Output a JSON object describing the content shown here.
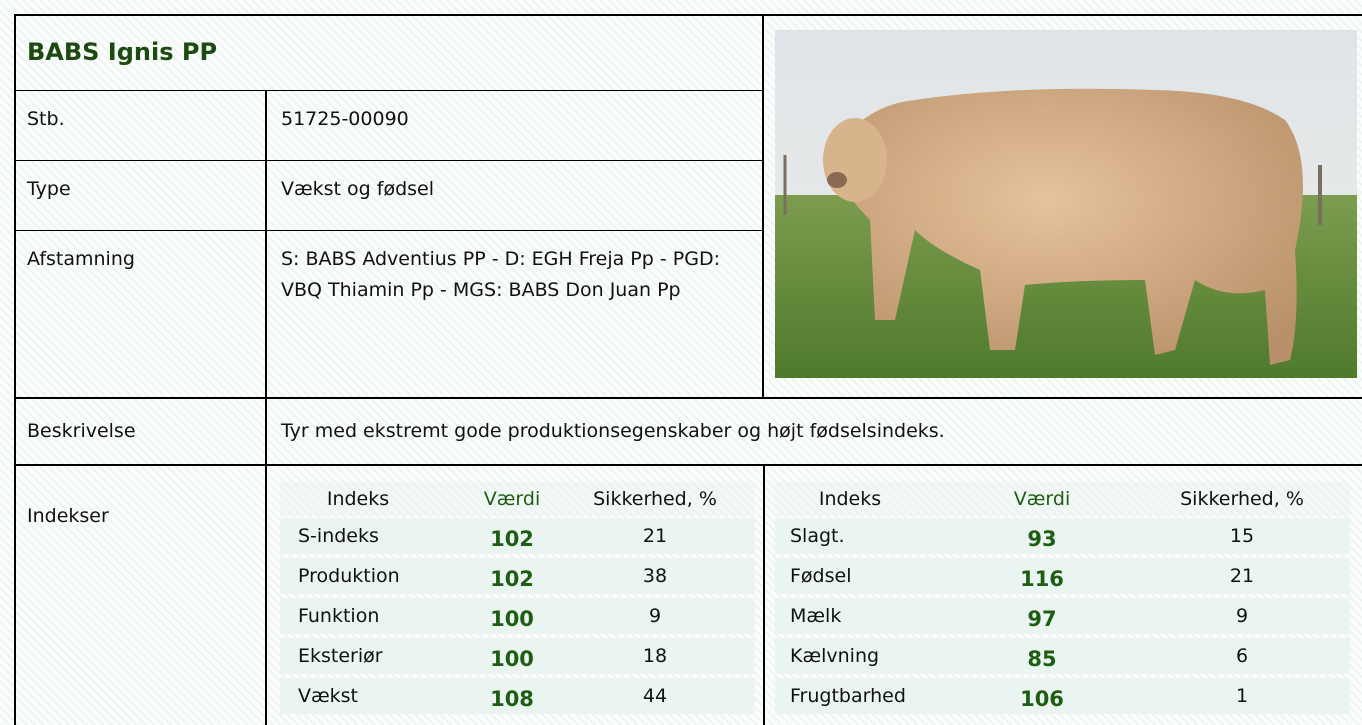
{
  "header": {
    "title": "BABS Ignis PP"
  },
  "fields": [
    {
      "label": "Stb.",
      "value": "51725-00090"
    },
    {
      "label": "Type",
      "value": "Vækst og fødsel"
    },
    {
      "label": "Afstamning",
      "value": "S: BABS Adventius PP - D: EGH Freja Pp - PGD: VBQ Thiamin Pp - MGS: BABS Don Juan Pp"
    }
  ],
  "description": {
    "label": "Beskrivelse",
    "value": "Tyr med ekstremt gode produktionsegenskaber og højt fødselsindeks."
  },
  "indices": {
    "label": "Indekser",
    "tables": [
      {
        "columns": [
          "Indeks",
          "Værdi",
          "Sikkerhed, %"
        ],
        "rows": [
          [
            "S-indeks",
            102,
            21
          ],
          [
            "Produktion",
            102,
            38
          ],
          [
            "Funktion",
            100,
            9
          ],
          [
            "Eksteriør",
            100,
            18
          ],
          [
            "Vækst",
            108,
            44
          ]
        ]
      },
      {
        "columns": [
          "Indeks",
          "Værdi",
          "Sikkerhed, %"
        ],
        "rows": [
          [
            "Slagt.",
            93,
            15
          ],
          [
            "Fødsel",
            116,
            21
          ],
          [
            "Mælk",
            97,
            9
          ],
          [
            "Kælvning",
            85,
            6
          ],
          [
            "Frugtbarhed",
            106,
            1
          ]
        ]
      }
    ]
  }
}
